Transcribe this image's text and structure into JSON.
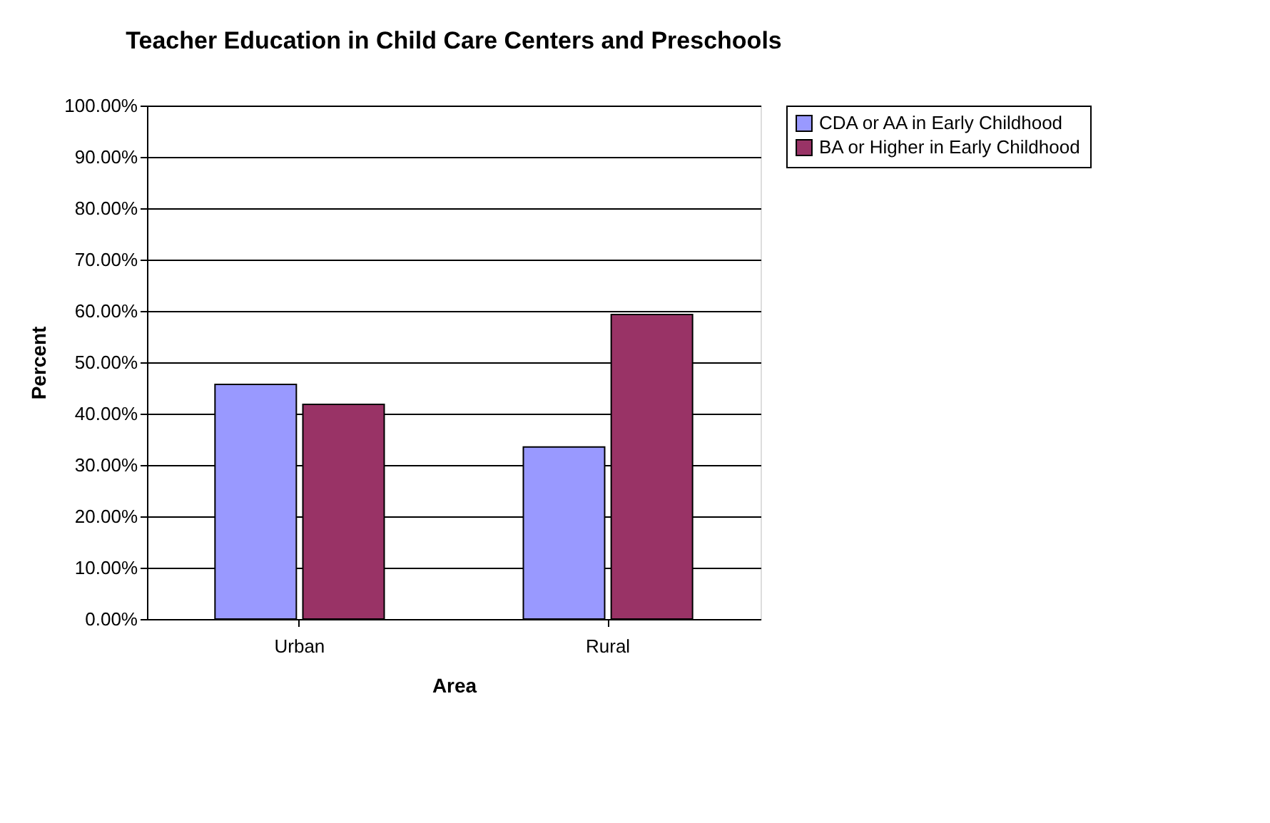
{
  "chart_data": {
    "type": "bar",
    "title": "Teacher Education in Child Care Centers and Preschools",
    "xlabel": "Area",
    "ylabel": "Percent",
    "categories": [
      "Urban",
      "Rural"
    ],
    "series": [
      {
        "name": "CDA or AA in Early Childhood",
        "color": "#9999ff",
        "values": [
          45.7,
          33.5
        ]
      },
      {
        "name": "BA or Higher in Early Childhood",
        "color": "#993366",
        "values": [
          41.8,
          59.3
        ]
      }
    ],
    "ylim": [
      0,
      100
    ],
    "yticks": [
      {
        "value": 0,
        "label": "0.00%"
      },
      {
        "value": 10,
        "label": "10.00%"
      },
      {
        "value": 20,
        "label": "20.00%"
      },
      {
        "value": 30,
        "label": "30.00%"
      },
      {
        "value": 40,
        "label": "40.00%"
      },
      {
        "value": 50,
        "label": "50.00%"
      },
      {
        "value": 60,
        "label": "60.00%"
      },
      {
        "value": 70,
        "label": "70.00%"
      },
      {
        "value": 80,
        "label": "80.00%"
      },
      {
        "value": 90,
        "label": "90.00%"
      },
      {
        "value": 100,
        "label": "100.00%"
      }
    ],
    "grid": "y",
    "legend": "right"
  }
}
